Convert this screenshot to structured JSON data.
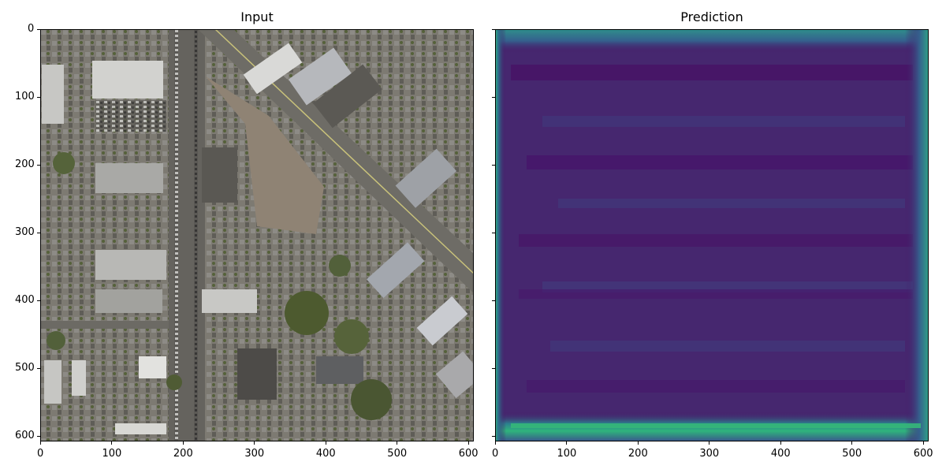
{
  "panels": [
    {
      "title": "Input"
    },
    {
      "title": "Prediction"
    }
  ],
  "axes": {
    "x_ticks": [
      "0",
      "100",
      "200",
      "300",
      "400",
      "500",
      "600"
    ],
    "y_ticks": [
      "0",
      "100",
      "200",
      "300",
      "400",
      "500",
      "600"
    ]
  },
  "colors": {
    "viridis_dark": "#471365",
    "viridis_mid": "#33638d",
    "viridis_edge": "#2a9d8a",
    "viridis_bright": "#35b779",
    "aerial_road": "#6e6c66",
    "aerial_roof": "#8a8c90",
    "aerial_tree": "#4d5a2f",
    "aerial_soil": "#8f8374"
  }
}
